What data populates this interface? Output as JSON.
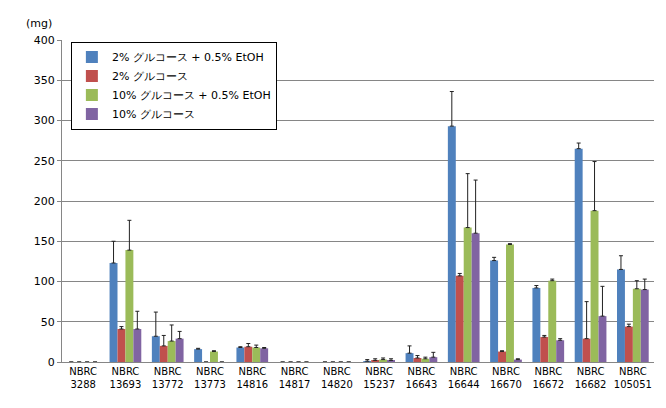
{
  "chart_data": {
    "type": "bar",
    "y_label": "(mg)",
    "categories": [
      "NBRC 3288",
      "NBRC 13693",
      "NBRC 13772",
      "NBRC 13773",
      "NBRC 14816",
      "NBRC 14817",
      "NBRC 14820",
      "NBRC 15237",
      "NBRC 16643",
      "NBRC 16644",
      "NBRC 16670",
      "NBRC 16672",
      "NBRC 16682",
      "NBRC 105051"
    ],
    "series": [
      {
        "name": "2% グルコース + 0.5% EtOH",
        "color": "#4f81bd",
        "values": [
          0,
          123,
          32,
          16,
          18,
          0,
          0,
          1,
          11,
          293,
          126,
          92,
          265,
          115
        ],
        "error": [
          0,
          27,
          30,
          1,
          1,
          0,
          0,
          2,
          9,
          43,
          4,
          3,
          7,
          17
        ]
      },
      {
        "name": "2% グルコース",
        "color": "#c0504d",
        "values": [
          0,
          41,
          20,
          0,
          19,
          0,
          0,
          2,
          5,
          107,
          13,
          31,
          29,
          44
        ],
        "error": [
          0,
          3,
          13,
          0,
          4,
          0,
          0,
          2,
          3,
          3,
          1,
          2,
          46,
          3
        ]
      },
      {
        "name": "10% グルコース + 0.5% EtOH",
        "color": "#9bbb59",
        "values": [
          0,
          139,
          26,
          13,
          18,
          0,
          0,
          3,
          4,
          167,
          146,
          101,
          188,
          91
        ],
        "error": [
          0,
          37,
          20,
          1,
          3,
          0,
          0,
          2,
          2,
          67,
          1,
          2,
          61,
          10
        ]
      },
      {
        "name": "10% グルコース",
        "color": "#8064a2",
        "values": [
          0,
          41,
          29,
          0,
          17,
          0,
          0,
          2,
          6,
          160,
          3,
          27,
          57,
          90
        ],
        "error": [
          0,
          22,
          9,
          0,
          1,
          0,
          0,
          2,
          6,
          66,
          1,
          2,
          37,
          13
        ]
      }
    ],
    "ylim": [
      0,
      400
    ],
    "yticks": [
      0,
      50,
      100,
      150,
      200,
      250,
      300,
      350,
      400
    ],
    "grid": true,
    "legend": "upper left"
  }
}
